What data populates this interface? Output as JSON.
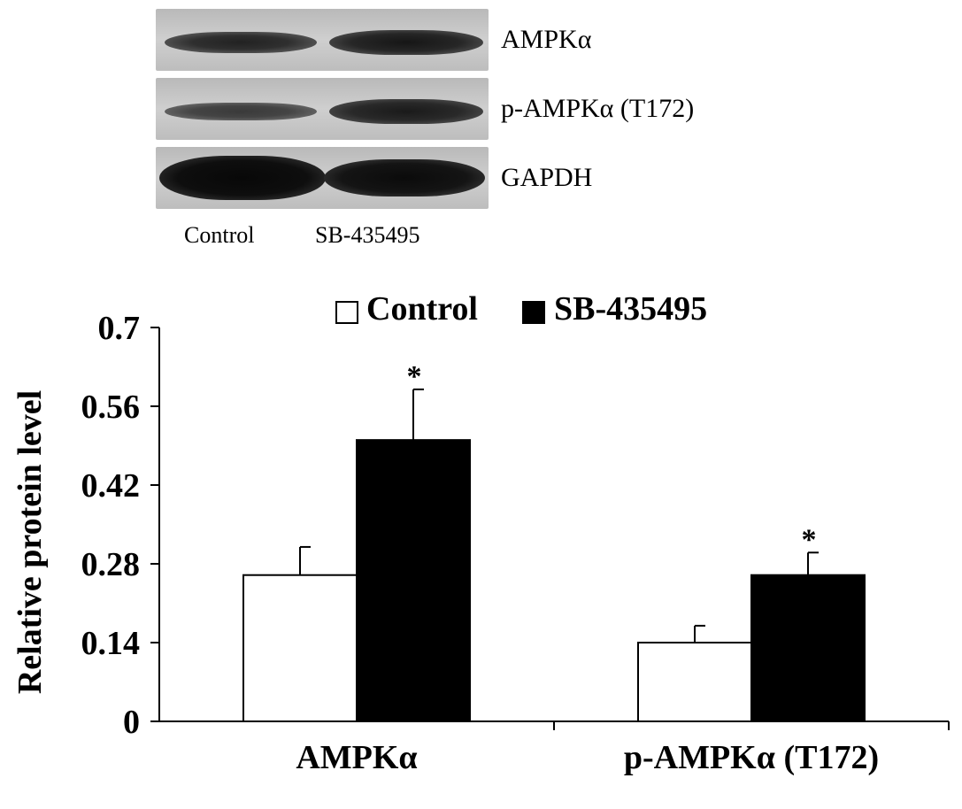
{
  "blot": {
    "rows": [
      "AMPKα",
      "p-AMPKα (T172)",
      "GAPDH"
    ],
    "lanes": [
      "Control",
      "SB-435495"
    ]
  },
  "chart_data": {
    "type": "bar",
    "categories": [
      "AMPKα",
      "p-AMPKα (T172)"
    ],
    "series": [
      {
        "name": "Control",
        "values": [
          0.26,
          0.14
        ],
        "errors": [
          0.05,
          0.03
        ],
        "color": "#ffffff"
      },
      {
        "name": "SB-435495",
        "values": [
          0.5,
          0.26
        ],
        "errors": [
          0.09,
          0.04
        ],
        "color": "#000000"
      }
    ],
    "significance": [
      {
        "category": "AMPKα",
        "series": "SB-435495",
        "mark": "*"
      },
      {
        "category": "p-AMPKα (T172)",
        "series": "SB-435495",
        "mark": "*"
      }
    ],
    "ylabel": "Relative protein level",
    "yticks": [
      "0",
      "0.14",
      "0.28",
      "0.42",
      "0.56",
      "0.7"
    ],
    "ylim": [
      0,
      0.7
    ],
    "legend_position": "top-center",
    "grid": false
  }
}
